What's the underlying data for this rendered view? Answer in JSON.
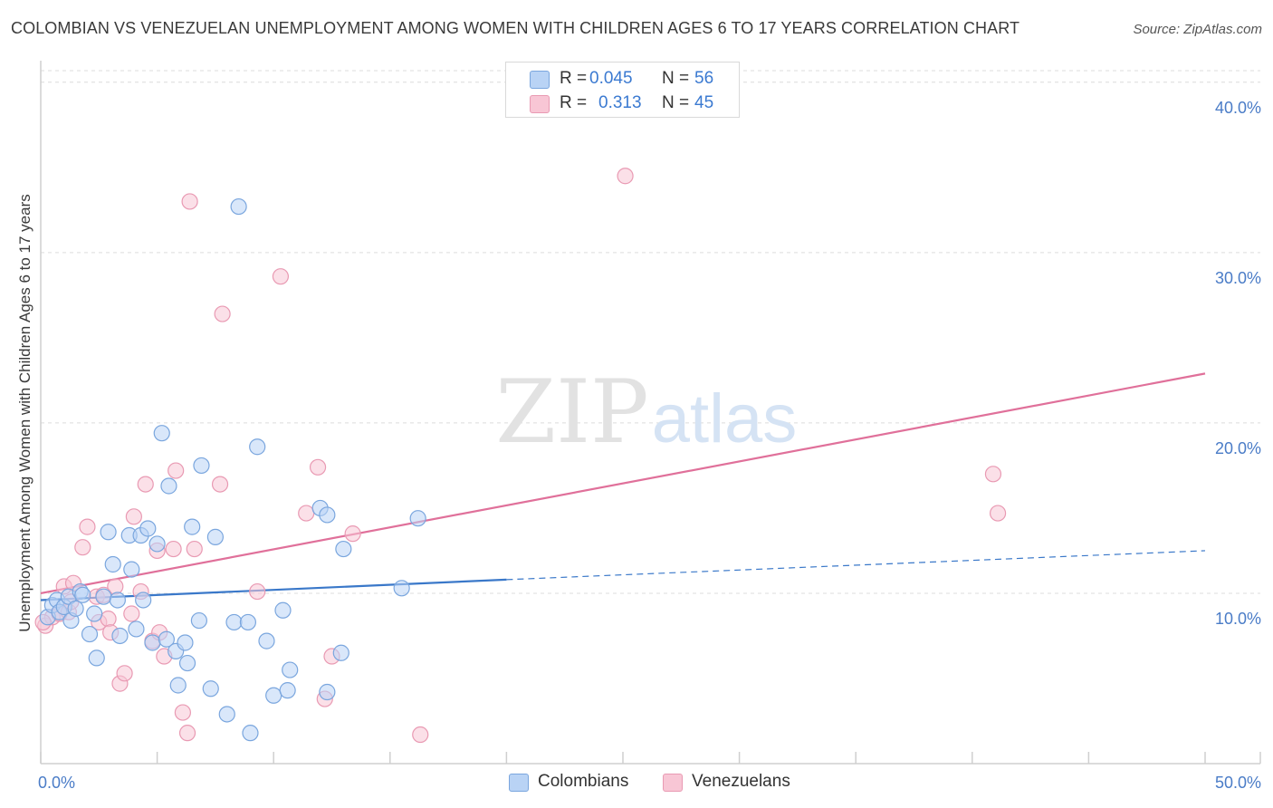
{
  "title": "COLOMBIAN VS VENEZUELAN UNEMPLOYMENT AMONG WOMEN WITH CHILDREN AGES 6 TO 17 YEARS CORRELATION CHART",
  "source": "Source: ZipAtlas.com",
  "watermark": {
    "zip": "ZIP",
    "atlas": "atlas"
  },
  "colors": {
    "blue_fill": "#b9d3f5",
    "blue_stroke": "#7aa6de",
    "blue_line": "#3a78c9",
    "pink_fill": "#f8c6d5",
    "pink_stroke": "#e99ab3",
    "pink_line": "#e0709a",
    "grid": "#dcdcdc",
    "axis": "#cfcfcf",
    "tick_text": "#4a7cc7"
  },
  "legend": {
    "rows": [
      {
        "r_label": "R =",
        "r_value": "0.045",
        "n_label": "N =",
        "n_value": "56",
        "color": "blue"
      },
      {
        "r_label": "R =",
        "r_value": "0.313",
        "n_label": "N =",
        "n_value": "45",
        "color": "pink"
      }
    ]
  },
  "bottom_legend": [
    {
      "label": "Colombians",
      "color": "blue"
    },
    {
      "label": "Venezuelans",
      "color": "pink"
    }
  ],
  "chart_data": {
    "type": "scatter",
    "title": "COLOMBIAN VS VENEZUELAN UNEMPLOYMENT AMONG WOMEN WITH CHILDREN AGES 6 TO 17 YEARS CORRELATION CHART",
    "xlabel": "",
    "ylabel": "Unemployment Among Women with Children Ages 6 to 17 years",
    "xlim": [
      0,
      50
    ],
    "ylim": [
      0,
      41
    ],
    "x_tick_labels": [
      {
        "value": 0,
        "label": "0.0%"
      },
      {
        "value": 50,
        "label": "50.0%"
      }
    ],
    "y_tick_labels": [
      {
        "value": 10,
        "label": "10.0%"
      },
      {
        "value": 20,
        "label": "20.0%"
      },
      {
        "value": 30,
        "label": "30.0%"
      },
      {
        "value": 40,
        "label": "40.0%"
      }
    ],
    "x_minor_ticks": [
      0,
      5,
      10,
      15,
      20,
      25,
      30,
      35,
      40,
      45,
      50
    ],
    "grid": true,
    "series": [
      {
        "name": "Colombians",
        "color": "blue",
        "trend": {
          "x0": 0,
          "y0": 9.6,
          "x_solid_end": 20,
          "y_solid_end": 10.8,
          "x1": 50,
          "y1": 12.5
        },
        "points": [
          [
            0.3,
            8.6
          ],
          [
            0.5,
            9.3
          ],
          [
            0.7,
            9.6
          ],
          [
            0.8,
            8.9
          ],
          [
            1.0,
            9.2
          ],
          [
            1.2,
            9.8
          ],
          [
            1.3,
            8.4
          ],
          [
            1.5,
            9.1
          ],
          [
            1.7,
            10.1
          ],
          [
            1.8,
            9.9
          ],
          [
            2.1,
            7.6
          ],
          [
            2.3,
            8.8
          ],
          [
            2.4,
            6.2
          ],
          [
            2.7,
            9.8
          ],
          [
            2.9,
            13.6
          ],
          [
            3.1,
            11.7
          ],
          [
            3.3,
            9.6
          ],
          [
            3.4,
            7.5
          ],
          [
            3.8,
            13.4
          ],
          [
            3.9,
            11.4
          ],
          [
            4.1,
            7.9
          ],
          [
            4.3,
            13.4
          ],
          [
            4.4,
            9.6
          ],
          [
            4.6,
            13.8
          ],
          [
            4.8,
            7.1
          ],
          [
            5.0,
            12.9
          ],
          [
            5.2,
            19.4
          ],
          [
            5.4,
            7.3
          ],
          [
            5.5,
            16.3
          ],
          [
            5.8,
            6.6
          ],
          [
            5.9,
            4.6
          ],
          [
            6.2,
            7.1
          ],
          [
            6.3,
            5.9
          ],
          [
            6.5,
            13.9
          ],
          [
            6.8,
            8.4
          ],
          [
            6.9,
            17.5
          ],
          [
            7.3,
            4.4
          ],
          [
            7.5,
            13.3
          ],
          [
            8.0,
            2.9
          ],
          [
            8.3,
            8.3
          ],
          [
            8.5,
            32.7
          ],
          [
            8.9,
            8.3
          ],
          [
            9.0,
            1.8
          ],
          [
            9.3,
            18.6
          ],
          [
            9.7,
            7.2
          ],
          [
            10.0,
            4.0
          ],
          [
            10.4,
            9.0
          ],
          [
            10.6,
            4.3
          ],
          [
            10.7,
            5.5
          ],
          [
            12.0,
            15.0
          ],
          [
            12.3,
            14.6
          ],
          [
            12.3,
            4.2
          ],
          [
            12.9,
            6.5
          ],
          [
            13.0,
            12.6
          ],
          [
            15.5,
            10.3
          ],
          [
            16.2,
            14.4
          ]
        ]
      },
      {
        "name": "Venezuelans",
        "color": "pink",
        "trend": {
          "x0": 0,
          "y0": 10.0,
          "x1": 50,
          "y1": 22.9
        },
        "points": [
          [
            0.2,
            8.1
          ],
          [
            0.5,
            8.6
          ],
          [
            0.8,
            8.8
          ],
          [
            1.0,
            10.4
          ],
          [
            1.2,
            8.9
          ],
          [
            1.3,
            9.5
          ],
          [
            1.4,
            10.6
          ],
          [
            1.8,
            12.7
          ],
          [
            2.0,
            13.9
          ],
          [
            2.4,
            9.8
          ],
          [
            2.5,
            8.3
          ],
          [
            2.7,
            9.9
          ],
          [
            2.9,
            8.5
          ],
          [
            3.0,
            7.7
          ],
          [
            3.2,
            10.4
          ],
          [
            3.4,
            4.7
          ],
          [
            3.6,
            5.3
          ],
          [
            3.9,
            8.8
          ],
          [
            4.0,
            14.5
          ],
          [
            4.3,
            10.1
          ],
          [
            4.5,
            16.4
          ],
          [
            4.8,
            7.2
          ],
          [
            5.0,
            12.5
          ],
          [
            5.1,
            7.7
          ],
          [
            5.3,
            6.3
          ],
          [
            5.7,
            12.6
          ],
          [
            5.8,
            17.2
          ],
          [
            6.1,
            3.0
          ],
          [
            6.3,
            1.8
          ],
          [
            6.4,
            33.0
          ],
          [
            6.6,
            12.6
          ],
          [
            7.7,
            16.4
          ],
          [
            7.8,
            26.4
          ],
          [
            9.3,
            10.1
          ],
          [
            10.3,
            28.6
          ],
          [
            11.4,
            14.7
          ],
          [
            11.9,
            17.4
          ],
          [
            12.2,
            3.8
          ],
          [
            12.5,
            6.3
          ],
          [
            13.4,
            13.5
          ],
          [
            16.3,
            1.7
          ],
          [
            25.1,
            34.5
          ],
          [
            40.9,
            17.0
          ],
          [
            41.1,
            14.7
          ],
          [
            0.1,
            8.3
          ]
        ]
      }
    ]
  }
}
